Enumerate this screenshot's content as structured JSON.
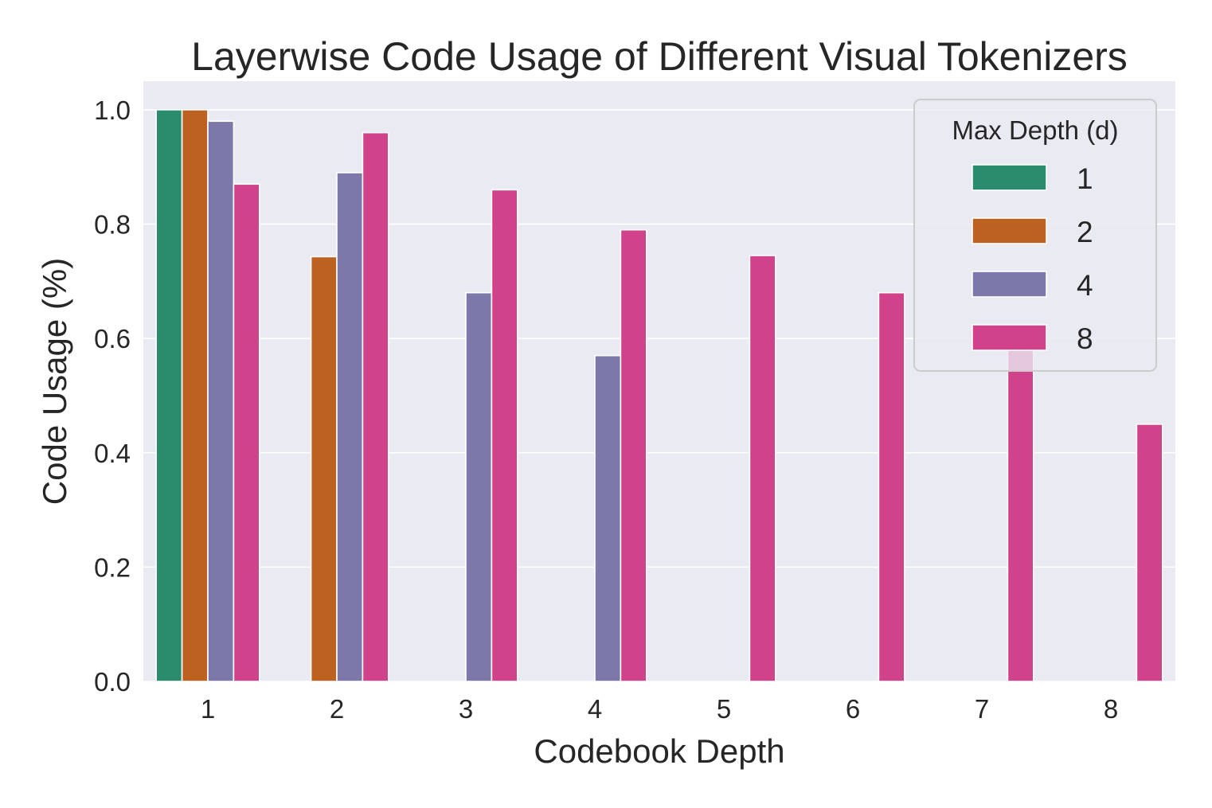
{
  "chart_data": {
    "type": "bar",
    "title": "Layerwise Code Usage of Different Visual Tokenizers",
    "xlabel": "Codebook Depth",
    "ylabel": "Code Usage (%)",
    "categories": [
      "1",
      "2",
      "3",
      "4",
      "5",
      "6",
      "7",
      "8"
    ],
    "yticks": [
      "0.0",
      "0.2",
      "0.4",
      "0.6",
      "0.8",
      "1.0"
    ],
    "ylim": [
      0,
      1.05
    ],
    "grid": true,
    "legend": {
      "title": "Max Depth (d)",
      "placement": "top-right"
    },
    "series": [
      {
        "name": "1",
        "color": "#2a8c6d",
        "values": [
          1.0,
          null,
          null,
          null,
          null,
          null,
          null,
          null
        ]
      },
      {
        "name": "2",
        "color": "#bd6121",
        "values": [
          1.0,
          0.743,
          null,
          null,
          null,
          null,
          null,
          null
        ]
      },
      {
        "name": "4",
        "color": "#7d78aa",
        "values": [
          0.98,
          0.89,
          0.68,
          0.57,
          null,
          null,
          null,
          null
        ]
      },
      {
        "name": "8",
        "color": "#d0438b",
        "values": [
          0.87,
          0.96,
          0.86,
          0.79,
          0.745,
          0.68,
          0.58,
          0.45
        ]
      }
    ]
  }
}
